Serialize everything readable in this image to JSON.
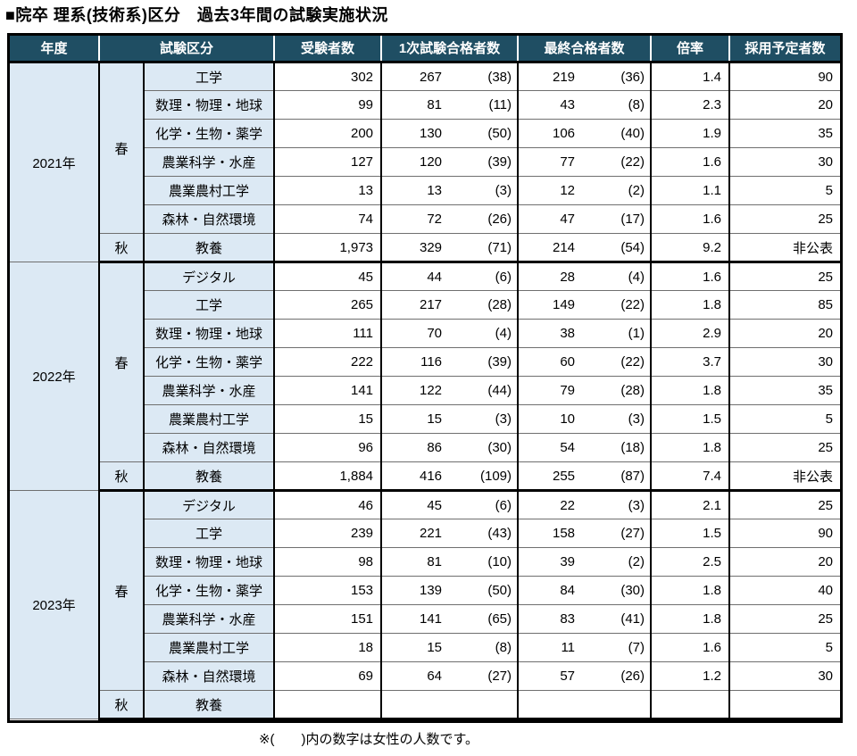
{
  "title": "■院卒 理系(技術系)区分　過去3年間の試験実施状況",
  "note": "※(　　)内の数字は女性の人数です。",
  "colors": {
    "header_bg": "#1F4E63",
    "header_text": "#FFFFFF",
    "label_bg": "#DCE9F4",
    "border_dark": "#000000",
    "border_thin": "#6F6F6F"
  },
  "table": {
    "headers": [
      "年度",
      "試験区分",
      "受験者数",
      "1次試験合格者数",
      "最終合格者数",
      "倍率",
      "採用予定者数"
    ],
    "groups": [
      {
        "year": "2021年",
        "seasons": [
          {
            "label": "春",
            "rows": [
              {
                "category": "工学",
                "applicants": "302",
                "first": "267",
                "first_f": "(38)",
                "final": "219",
                "final_f": "(36)",
                "ratio": "1.4",
                "planned": "90"
              },
              {
                "category": "数理・物理・地球",
                "applicants": "99",
                "first": "81",
                "first_f": "(11)",
                "final": "43",
                "final_f": "(8)",
                "ratio": "2.3",
                "planned": "20"
              },
              {
                "category": "化学・生物・薬学",
                "applicants": "200",
                "first": "130",
                "first_f": "(50)",
                "final": "106",
                "final_f": "(40)",
                "ratio": "1.9",
                "planned": "35"
              },
              {
                "category": "農業科学・水産",
                "applicants": "127",
                "first": "120",
                "first_f": "(39)",
                "final": "77",
                "final_f": "(22)",
                "ratio": "1.6",
                "planned": "30"
              },
              {
                "category": "農業農村工学",
                "applicants": "13",
                "first": "13",
                "first_f": "(3)",
                "final": "12",
                "final_f": "(2)",
                "ratio": "1.1",
                "planned": "5"
              },
              {
                "category": "森林・自然環境",
                "applicants": "74",
                "first": "72",
                "first_f": "(26)",
                "final": "47",
                "final_f": "(17)",
                "ratio": "1.6",
                "planned": "25"
              }
            ]
          },
          {
            "label": "秋",
            "rows": [
              {
                "category": "教養",
                "applicants": "1,973",
                "first": "329",
                "first_f": "(71)",
                "final": "214",
                "final_f": "(54)",
                "ratio": "9.2",
                "planned": "非公表"
              }
            ]
          }
        ]
      },
      {
        "year": "2022年",
        "seasons": [
          {
            "label": "春",
            "rows": [
              {
                "category": "デジタル",
                "applicants": "45",
                "first": "44",
                "first_f": "(6)",
                "final": "28",
                "final_f": "(4)",
                "ratio": "1.6",
                "planned": "25"
              },
              {
                "category": "工学",
                "applicants": "265",
                "first": "217",
                "first_f": "(28)",
                "final": "149",
                "final_f": "(22)",
                "ratio": "1.8",
                "planned": "85"
              },
              {
                "category": "数理・物理・地球",
                "applicants": "111",
                "first": "70",
                "first_f": "(4)",
                "final": "38",
                "final_f": "(1)",
                "ratio": "2.9",
                "planned": "20"
              },
              {
                "category": "化学・生物・薬学",
                "applicants": "222",
                "first": "116",
                "first_f": "(39)",
                "final": "60",
                "final_f": "(22)",
                "ratio": "3.7",
                "planned": "30"
              },
              {
                "category": "農業科学・水産",
                "applicants": "141",
                "first": "122",
                "first_f": "(44)",
                "final": "79",
                "final_f": "(28)",
                "ratio": "1.8",
                "planned": "35"
              },
              {
                "category": "農業農村工学",
                "applicants": "15",
                "first": "15",
                "first_f": "(3)",
                "final": "10",
                "final_f": "(3)",
                "ratio": "1.5",
                "planned": "5"
              },
              {
                "category": "森林・自然環境",
                "applicants": "96",
                "first": "86",
                "first_f": "(30)",
                "final": "54",
                "final_f": "(18)",
                "ratio": "1.8",
                "planned": "25"
              }
            ]
          },
          {
            "label": "秋",
            "rows": [
              {
                "category": "教養",
                "applicants": "1,884",
                "first": "416",
                "first_f": "(109)",
                "final": "255",
                "final_f": "(87)",
                "ratio": "7.4",
                "planned": "非公表"
              }
            ]
          }
        ]
      },
      {
        "year": "2023年",
        "seasons": [
          {
            "label": "春",
            "rows": [
              {
                "category": "デジタル",
                "applicants": "46",
                "first": "45",
                "first_f": "(6)",
                "final": "22",
                "final_f": "(3)",
                "ratio": "2.1",
                "planned": "25"
              },
              {
                "category": "工学",
                "applicants": "239",
                "first": "221",
                "first_f": "(43)",
                "final": "158",
                "final_f": "(27)",
                "ratio": "1.5",
                "planned": "90"
              },
              {
                "category": "数理・物理・地球",
                "applicants": "98",
                "first": "81",
                "first_f": "(10)",
                "final": "39",
                "final_f": "(2)",
                "ratio": "2.5",
                "planned": "20"
              },
              {
                "category": "化学・生物・薬学",
                "applicants": "153",
                "first": "139",
                "first_f": "(50)",
                "final": "84",
                "final_f": "(30)",
                "ratio": "1.8",
                "planned": "40"
              },
              {
                "category": "農業科学・水産",
                "applicants": "151",
                "first": "141",
                "first_f": "(65)",
                "final": "83",
                "final_f": "(41)",
                "ratio": "1.8",
                "planned": "25"
              },
              {
                "category": "農業農村工学",
                "applicants": "18",
                "first": "15",
                "first_f": "(8)",
                "final": "11",
                "final_f": "(7)",
                "ratio": "1.6",
                "planned": "5"
              },
              {
                "category": "森林・自然環境",
                "applicants": "69",
                "first": "64",
                "first_f": "(27)",
                "final": "57",
                "final_f": "(26)",
                "ratio": "1.2",
                "planned": "30"
              }
            ]
          },
          {
            "label": "秋",
            "rows": [
              {
                "category": "教養",
                "applicants": "",
                "first": "",
                "first_f": "",
                "final": "",
                "final_f": "",
                "ratio": "",
                "planned": ""
              }
            ]
          }
        ]
      }
    ]
  }
}
